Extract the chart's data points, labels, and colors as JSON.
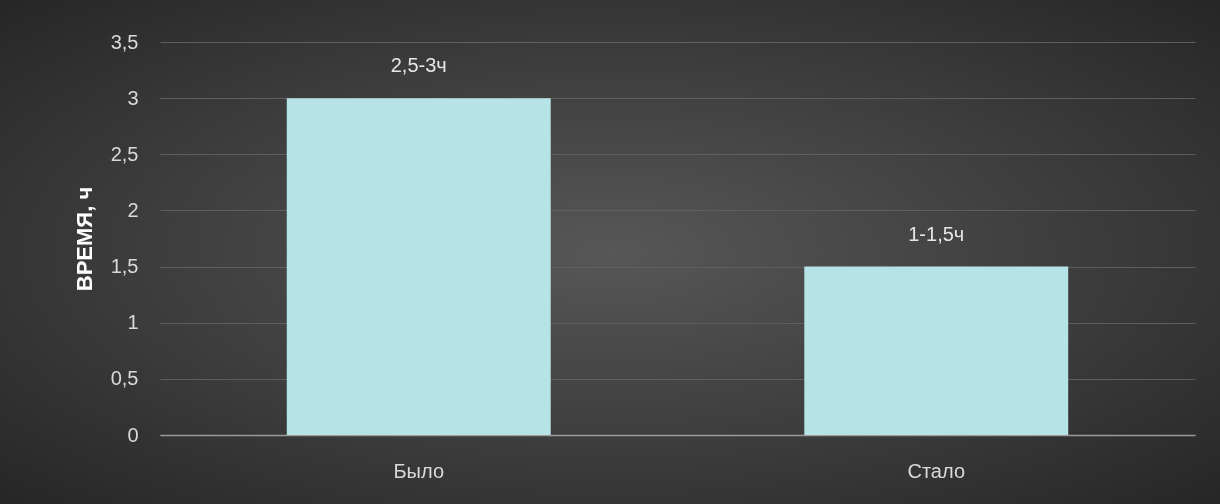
{
  "chart_data": {
    "type": "bar",
    "ylabel": "ВРЕМЯ, ч",
    "categories": [
      "Было",
      "Стало"
    ],
    "values": [
      3,
      1.5
    ],
    "value_labels": [
      "2,5-3ч",
      "1-1,5ч"
    ],
    "color": "#b8e3e6",
    "ylim": [
      0,
      3.5
    ],
    "yticks": [
      0,
      {
        "value": 0.5,
        "label": "0,5"
      },
      1,
      {
        "value": 1.5,
        "label": "1,5"
      },
      2,
      {
        "value": 2.5,
        "label": "2,5"
      },
      3,
      {
        "value": 3.5,
        "label": "3,5"
      }
    ],
    "grid": "y"
  }
}
